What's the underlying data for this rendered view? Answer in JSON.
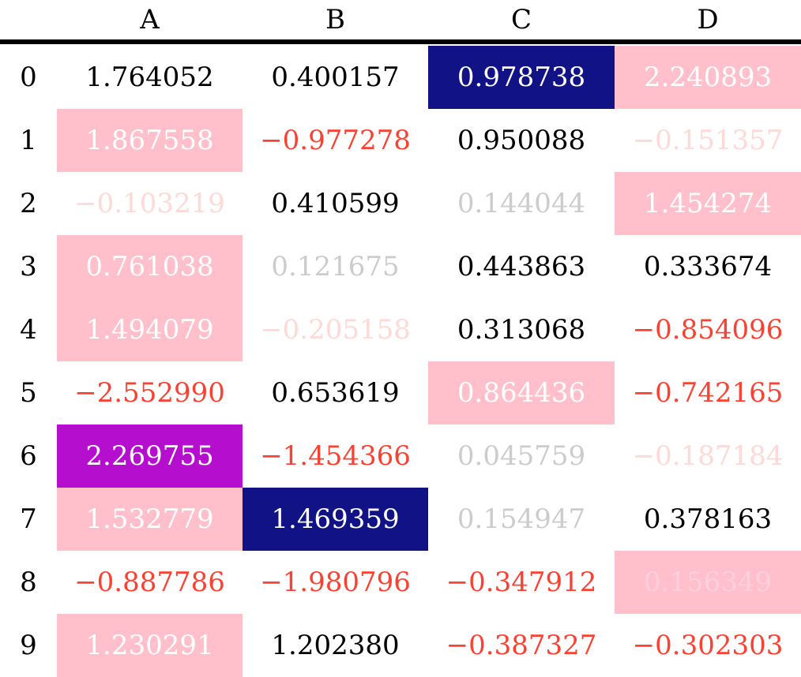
{
  "chart_data": {
    "type": "table",
    "title": "",
    "columns": [
      "A",
      "B",
      "C",
      "D"
    ],
    "index": [
      0,
      1,
      2,
      3,
      4,
      5,
      6,
      7,
      8,
      9
    ],
    "data": [
      [
        1.764052,
        0.400157,
        0.978738,
        2.240893
      ],
      [
        1.867558,
        -0.977278,
        0.950088,
        -0.151357
      ],
      [
        -0.103219,
        0.410599,
        0.144044,
        1.454274
      ],
      [
        0.761038,
        0.121675,
        0.443863,
        0.333674
      ],
      [
        1.494079,
        -0.205158,
        0.313068,
        -0.854096
      ],
      [
        -2.55299,
        0.653619,
        0.864436,
        -0.742165
      ],
      [
        2.269755,
        -1.454366,
        0.045759,
        -0.187184
      ],
      [
        1.532779,
        1.469359,
        0.154947,
        0.378163
      ],
      [
        -0.887786,
        -1.980796,
        -0.347912,
        0.156349
      ],
      [
        1.230291,
        1.20238,
        -0.387327,
        -0.302303
      ]
    ],
    "legend": "none",
    "grid": "off",
    "style_semantics": {
      "pink_bg": "row maximum highlight",
      "navy_bg": "column maximum highlight",
      "purple_bg": "table maximum highlight",
      "red": "negative value",
      "faint_red": "negative value near zero (20% opacity)",
      "faint_black": "positive value near zero (20% opacity)"
    }
  },
  "palette": {
    "rule_color": "#000000",
    "background": "#ffffff",
    "styles": {
      "default": {
        "fg": "#000000",
        "bg": "transparent"
      },
      "red": {
        "fg": "#fa4132",
        "bg": "transparent"
      },
      "faint_red": {
        "fg": "#fed9d6",
        "bg": "transparent"
      },
      "faint_black": {
        "fg": "#cccccc",
        "bg": "transparent"
      },
      "pink_bg": {
        "fg": "#ffffff",
        "bg": "#ffc0cb"
      },
      "pink_bg_faint": {
        "fg": "#ffd0d9",
        "bg": "#ffc0cb"
      },
      "navy_bg": {
        "fg": "#ffffff",
        "bg": "#101286"
      },
      "purple_bg": {
        "fg": "#ffffff",
        "bg": "#b60ecf"
      }
    }
  },
  "table": {
    "columns": [
      "A",
      "B",
      "C",
      "D"
    ],
    "rows": [
      {
        "index": "0",
        "cells": [
          {
            "value": "1.764052",
            "style": "default"
          },
          {
            "value": "0.400157",
            "style": "default"
          },
          {
            "value": "0.978738",
            "style": "navy_bg"
          },
          {
            "value": "2.240893",
            "style": "pink_bg"
          }
        ]
      },
      {
        "index": "1",
        "cells": [
          {
            "value": "1.867558",
            "style": "pink_bg"
          },
          {
            "value": "−0.977278",
            "style": "red"
          },
          {
            "value": "0.950088",
            "style": "default"
          },
          {
            "value": "−0.151357",
            "style": "faint_red"
          }
        ]
      },
      {
        "index": "2",
        "cells": [
          {
            "value": "−0.103219",
            "style": "faint_red"
          },
          {
            "value": "0.410599",
            "style": "default"
          },
          {
            "value": "0.144044",
            "style": "faint_black"
          },
          {
            "value": "1.454274",
            "style": "pink_bg"
          }
        ]
      },
      {
        "index": "3",
        "cells": [
          {
            "value": "0.761038",
            "style": "pink_bg"
          },
          {
            "value": "0.121675",
            "style": "faint_black"
          },
          {
            "value": "0.443863",
            "style": "default"
          },
          {
            "value": "0.333674",
            "style": "default"
          }
        ]
      },
      {
        "index": "4",
        "cells": [
          {
            "value": "1.494079",
            "style": "pink_bg"
          },
          {
            "value": "−0.205158",
            "style": "faint_red"
          },
          {
            "value": "0.313068",
            "style": "default"
          },
          {
            "value": "−0.854096",
            "style": "red"
          }
        ]
      },
      {
        "index": "5",
        "cells": [
          {
            "value": "−2.552990",
            "style": "red"
          },
          {
            "value": "0.653619",
            "style": "default"
          },
          {
            "value": "0.864436",
            "style": "pink_bg"
          },
          {
            "value": "−0.742165",
            "style": "red"
          }
        ]
      },
      {
        "index": "6",
        "cells": [
          {
            "value": "2.269755",
            "style": "purple_bg"
          },
          {
            "value": "−1.454366",
            "style": "red"
          },
          {
            "value": "0.045759",
            "style": "faint_black"
          },
          {
            "value": "−0.187184",
            "style": "faint_red"
          }
        ]
      },
      {
        "index": "7",
        "cells": [
          {
            "value": "1.532779",
            "style": "pink_bg"
          },
          {
            "value": "1.469359",
            "style": "navy_bg"
          },
          {
            "value": "0.154947",
            "style": "faint_black"
          },
          {
            "value": "0.378163",
            "style": "default"
          }
        ]
      },
      {
        "index": "8",
        "cells": [
          {
            "value": "−0.887786",
            "style": "red"
          },
          {
            "value": "−1.980796",
            "style": "red"
          },
          {
            "value": "−0.347912",
            "style": "red"
          },
          {
            "value": "0.156349",
            "style": "pink_bg_faint"
          }
        ]
      },
      {
        "index": "9",
        "cells": [
          {
            "value": "1.230291",
            "style": "pink_bg"
          },
          {
            "value": "1.202380",
            "style": "default"
          },
          {
            "value": "−0.387327",
            "style": "red"
          },
          {
            "value": "−0.302303",
            "style": "red"
          }
        ]
      }
    ]
  }
}
